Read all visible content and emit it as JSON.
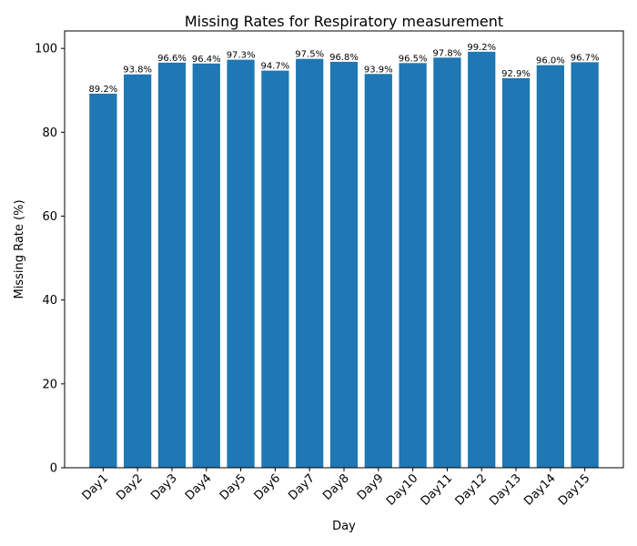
{
  "chart_data": {
    "type": "bar",
    "title": "Missing Rates for Respiratory measurement",
    "xlabel": "Day",
    "ylabel": "Missing Rate (%)",
    "categories": [
      "Day1",
      "Day2",
      "Day3",
      "Day4",
      "Day5",
      "Day6",
      "Day7",
      "Day8",
      "Day9",
      "Day10",
      "Day11",
      "Day12",
      "Day13",
      "Day14",
      "Day15"
    ],
    "values": [
      89.2,
      93.8,
      96.6,
      96.4,
      97.3,
      94.7,
      97.5,
      96.8,
      93.9,
      96.5,
      97.8,
      99.2,
      92.9,
      96.0,
      96.7
    ],
    "data_labels": [
      "89.2%",
      "93.8%",
      "96.6%",
      "96.4%",
      "97.3%",
      "94.7%",
      "97.5%",
      "96.8%",
      "93.9%",
      "96.5%",
      "97.8%",
      "99.2%",
      "92.9%",
      "96.0%",
      "96.7%"
    ],
    "ylim": [
      0,
      104.16
    ],
    "yticks": [
      0,
      20,
      40,
      60,
      80,
      100
    ],
    "grid": false,
    "legend": "none",
    "bar_color": "#1f77b4"
  }
}
